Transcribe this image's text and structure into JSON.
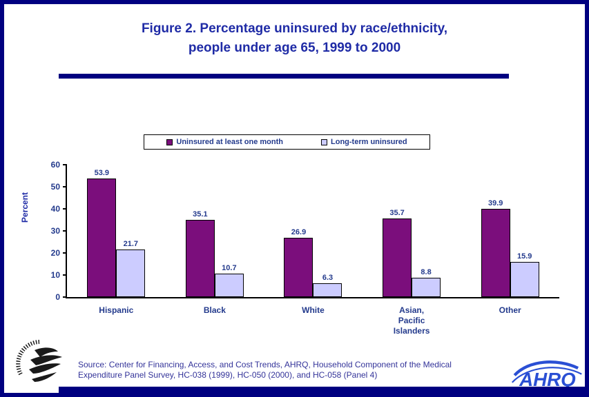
{
  "page": {
    "title": "Figure 2. Percentage uninsured by race/ethnicity,\npeople under age 65, 1999 to 2000"
  },
  "footer": {
    "source": "Source: Center for Financing, Access, and Cost Trends, AHRQ, Household Component of the Medical\nExpenditure Panel Survey, HC-038 (1999), HC-050 (2000), and HC-058 (Panel 4)",
    "ahrq_text": "AHRQ",
    "hhs_logo": "hhs-department-seal-eagle"
  },
  "colors": {
    "border_navy": "#000080",
    "title_blue": "#1F2BA6",
    "label_navy": "#233A8C",
    "source_blue": "#333399",
    "bar_purple": "#7B0E7C",
    "bar_lavender": "#CCCCFF",
    "ahrq_blue": "#2A4FD4",
    "rule_shadow_gray": "#8C8C8C"
  },
  "chart_data": {
    "type": "bar",
    "title": "Figure 2. Percentage uninsured by race/ethnicity, people under age 65, 1999 to 2000",
    "xlabel": "",
    "ylabel": "Percent",
    "ylim": [
      0,
      60
    ],
    "yticks": [
      0,
      10,
      20,
      30,
      40,
      50,
      60
    ],
    "grid": false,
    "legend_position": "top",
    "categories": [
      "Hispanic",
      "Black",
      "White",
      "Asian, Pacific\nIslanders",
      "Other"
    ],
    "series": [
      {
        "name": "Uninsured at least one month",
        "color": "#7B0E7C",
        "values": [
          53.9,
          35.1,
          26.9,
          35.7,
          39.9
        ]
      },
      {
        "name": "Long-term uninsured",
        "color": "#CCCCFF",
        "values": [
          21.7,
          10.7,
          6.3,
          8.8,
          15.9
        ]
      }
    ]
  }
}
